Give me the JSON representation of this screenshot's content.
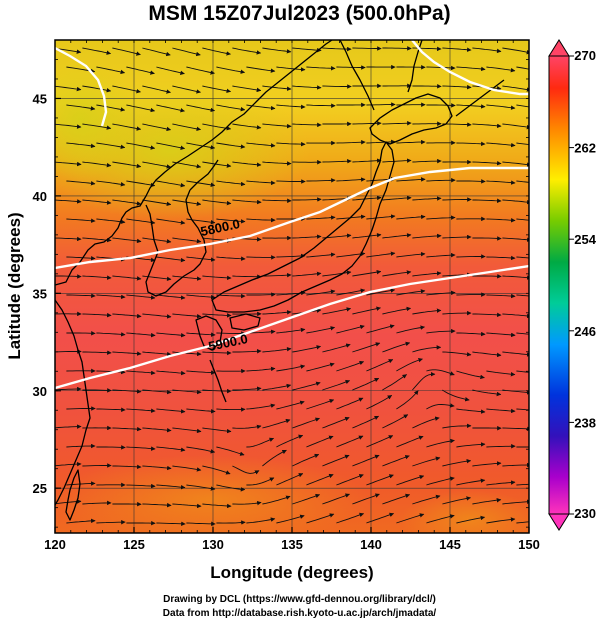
{
  "title": "MSM 15Z07Jul2023 (500.0hPa)",
  "x_axis": {
    "label": "Longitude (degrees)",
    "range": [
      120,
      150
    ],
    "ticks": [
      "120",
      "125",
      "130",
      "135",
      "140",
      "145",
      "150"
    ]
  },
  "y_axis": {
    "label": "Latitude  (degrees)",
    "range": [
      22.7,
      48
    ],
    "ticks": [
      "25",
      "30",
      "35",
      "40",
      "45"
    ]
  },
  "colorbar": {
    "range": [
      230,
      270
    ],
    "labels": [
      "270",
      "262",
      "254",
      "246",
      "238",
      "230"
    ],
    "label_values": [
      270,
      262,
      254,
      246,
      238,
      230
    ],
    "gradient_colors": [
      "#ff4466",
      "#ff2a10",
      "#ff8800",
      "#ffee00",
      "#77cc00",
      "#00aa44",
      "#00cc99",
      "#0099ff",
      "#0033dd",
      "#3311bb",
      "#aa00cc",
      "#ff33bb"
    ]
  },
  "contour_labels": [
    {
      "text": "5800.0",
      "lon": 130.5,
      "lat": 38.2
    },
    {
      "text": "5900.0",
      "lon": 131.0,
      "lat": 32.3
    }
  ],
  "credits": [
    "Drawing by DCL (https://www.gfd-dennou.org/library/dcl/)",
    "Data from http://database.rish.kyoto-u.ac.jp/arch/jmadata/"
  ]
}
